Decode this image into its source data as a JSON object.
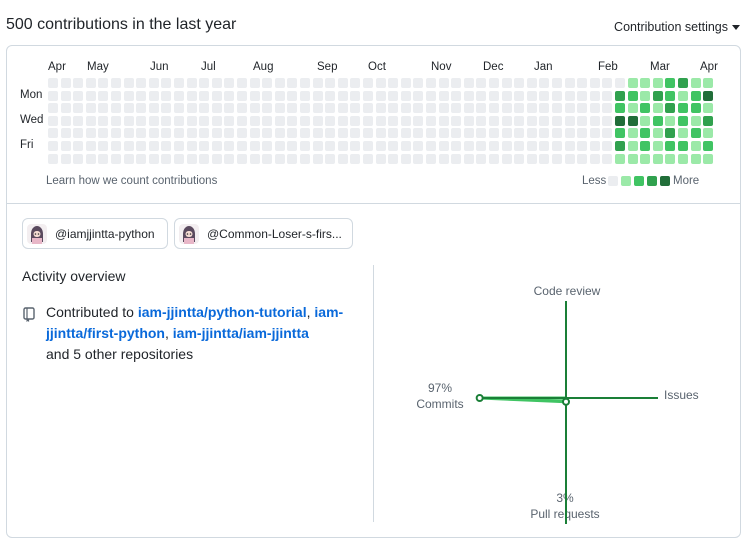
{
  "header": {
    "title": "500 contributions in the last year",
    "settings_label": "Contribution settings"
  },
  "calendar": {
    "months": [
      "Apr",
      "May",
      "Jun",
      "Jul",
      "Aug",
      "Sep",
      "Oct",
      "Nov",
      "Dec",
      "Jan",
      "Feb",
      "Mar",
      "Apr"
    ],
    "days": [
      "Mon",
      "Wed",
      "Fri"
    ],
    "weeks_shown": 53,
    "active_weeks": [
      [
        0,
        3,
        2,
        4,
        2,
        3,
        1
      ],
      [
        1,
        2,
        1,
        4,
        1,
        1,
        1
      ],
      [
        1,
        1,
        2,
        1,
        2,
        2,
        1
      ],
      [
        1,
        3,
        1,
        2,
        1,
        1,
        1
      ],
      [
        2,
        2,
        3,
        1,
        3,
        2,
        1
      ],
      [
        3,
        1,
        2,
        2,
        1,
        2,
        1
      ],
      [
        1,
        2,
        2,
        1,
        2,
        1,
        1
      ],
      [
        1,
        4,
        1,
        3,
        1,
        2,
        1
      ]
    ],
    "learn_text": "Learn how we count contributions",
    "legend_less": "Less",
    "legend_more": "More",
    "colors": [
      "#ebedf0",
      "#9be9a8",
      "#40c463",
      "#30a14e",
      "#216e39"
    ]
  },
  "organizations": [
    {
      "label": "@iamjjintta-python"
    },
    {
      "label": "@Common-Loser-s-firs..."
    }
  ],
  "activity": {
    "title": "Activity overview",
    "contributed_prefix": "Contributed to ",
    "repos": [
      "iam-jjintta/python-tutorial",
      "iam-jjintta/first-python",
      "iam-jjintta/iam-jjintta"
    ],
    "sep1": ",",
    "sep2": ", ",
    "others": "and 5 other repositories",
    "icon": "repo-icon"
  },
  "chart_data": {
    "type": "radar-cross",
    "axes": [
      {
        "name": "Code review",
        "percent": null
      },
      {
        "name": "Issues",
        "percent": null
      },
      {
        "name": "Pull requests",
        "percent": 3
      },
      {
        "name": "Commits",
        "percent": 97
      }
    ],
    "commits_pct_label": "97%",
    "commits_label": "Commits",
    "prs_pct_label": "3%",
    "prs_label": "Pull requests",
    "code_review_label": "Code review",
    "issues_label": "Issues",
    "line_color": "#1a7f37",
    "fill_color": "#40c463"
  }
}
